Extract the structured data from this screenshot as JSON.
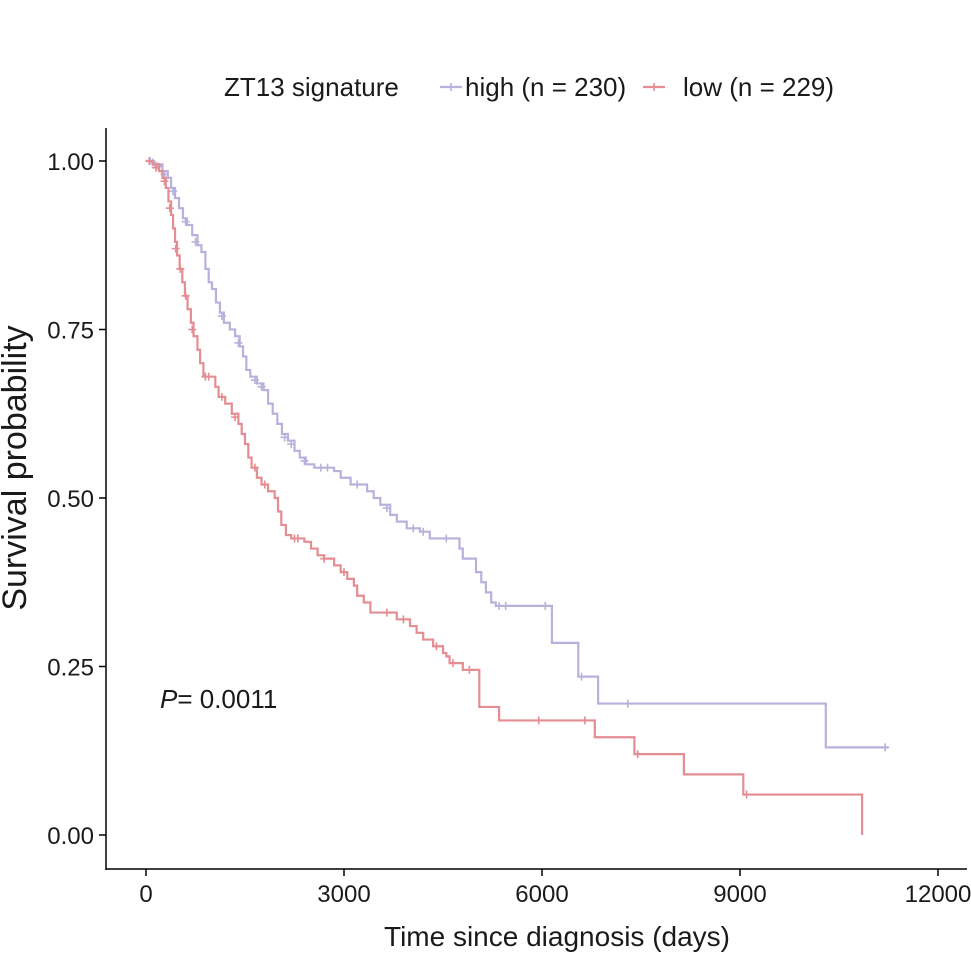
{
  "chart_data": {
    "type": "line",
    "step": true,
    "xlabel": "Time since diagnosis (days)",
    "ylabel": "Survival probability",
    "xlim": [
      -500,
      12000
    ],
    "ylim": [
      -0.05,
      1.05
    ],
    "xticks": [
      0,
      3000,
      6000,
      9000,
      12000
    ],
    "xtick_labels": [
      "0",
      "3000",
      "6000",
      "9000",
      "12000"
    ],
    "yticks": [
      0,
      0.25,
      0.5,
      0.75,
      1.0
    ],
    "ytick_labels": [
      "0.00",
      "0.25",
      "0.50",
      "0.75",
      "1.00"
    ],
    "grid": false,
    "legend": {
      "title": "ZT13 signature",
      "position": "top"
    },
    "annotation": {
      "p_label": "P",
      "p_value": "= 0.0011"
    },
    "series": [
      {
        "name": "high (n = 230)",
        "color": "#b7b2dc",
        "steps": [
          [
            0,
            1.0
          ],
          [
            120,
            0.995
          ],
          [
            250,
            0.985
          ],
          [
            330,
            0.975
          ],
          [
            380,
            0.96
          ],
          [
            440,
            0.945
          ],
          [
            500,
            0.93
          ],
          [
            560,
            0.915
          ],
          [
            620,
            0.905
          ],
          [
            700,
            0.89
          ],
          [
            780,
            0.875
          ],
          [
            840,
            0.865
          ],
          [
            900,
            0.84
          ],
          [
            950,
            0.82
          ],
          [
            1000,
            0.81
          ],
          [
            1060,
            0.79
          ],
          [
            1120,
            0.775
          ],
          [
            1180,
            0.76
          ],
          [
            1270,
            0.75
          ],
          [
            1350,
            0.74
          ],
          [
            1420,
            0.725
          ],
          [
            1470,
            0.71
          ],
          [
            1520,
            0.69
          ],
          [
            1580,
            0.68
          ],
          [
            1680,
            0.67
          ],
          [
            1780,
            0.66
          ],
          [
            1850,
            0.64
          ],
          [
            1920,
            0.625
          ],
          [
            1990,
            0.61
          ],
          [
            2060,
            0.595
          ],
          [
            2150,
            0.585
          ],
          [
            2250,
            0.57
          ],
          [
            2330,
            0.56
          ],
          [
            2420,
            0.55
          ],
          [
            2550,
            0.545
          ],
          [
            2850,
            0.54
          ],
          [
            2950,
            0.53
          ],
          [
            3100,
            0.52
          ],
          [
            3350,
            0.51
          ],
          [
            3450,
            0.5
          ],
          [
            3550,
            0.49
          ],
          [
            3700,
            0.475
          ],
          [
            3800,
            0.465
          ],
          [
            3950,
            0.455
          ],
          [
            4150,
            0.45
          ],
          [
            4300,
            0.44
          ],
          [
            4750,
            0.425
          ],
          [
            4800,
            0.41
          ],
          [
            5000,
            0.39
          ],
          [
            5080,
            0.375
          ],
          [
            5150,
            0.36
          ],
          [
            5230,
            0.345
          ],
          [
            5300,
            0.34
          ],
          [
            6150,
            0.285
          ],
          [
            6550,
            0.235
          ],
          [
            6850,
            0.195
          ],
          [
            10300,
            0.13
          ],
          [
            11250,
            0.13
          ]
        ],
        "censors": [
          [
            60,
            1.0
          ],
          [
            100,
            0.998
          ],
          [
            180,
            0.992
          ],
          [
            280,
            0.98
          ],
          [
            410,
            0.955
          ],
          [
            600,
            0.91
          ],
          [
            750,
            0.88
          ],
          [
            1150,
            0.77
          ],
          [
            1400,
            0.73
          ],
          [
            1650,
            0.675
          ],
          [
            1750,
            0.665
          ],
          [
            2100,
            0.59
          ],
          [
            2200,
            0.58
          ],
          [
            2400,
            0.555
          ],
          [
            2650,
            0.545
          ],
          [
            2750,
            0.545
          ],
          [
            3200,
            0.52
          ],
          [
            3650,
            0.485
          ],
          [
            4050,
            0.455
          ],
          [
            4200,
            0.45
          ],
          [
            4550,
            0.44
          ],
          [
            5350,
            0.34
          ],
          [
            5450,
            0.34
          ],
          [
            6050,
            0.34
          ],
          [
            6600,
            0.235
          ],
          [
            7300,
            0.195
          ],
          [
            11200,
            0.13
          ]
        ]
      },
      {
        "name": "low (n = 229)",
        "color": "#e48d92",
        "steps": [
          [
            0,
            1.0
          ],
          [
            100,
            0.995
          ],
          [
            200,
            0.985
          ],
          [
            250,
            0.975
          ],
          [
            300,
            0.96
          ],
          [
            340,
            0.94
          ],
          [
            380,
            0.92
          ],
          [
            410,
            0.9
          ],
          [
            440,
            0.88
          ],
          [
            470,
            0.86
          ],
          [
            510,
            0.84
          ],
          [
            550,
            0.82
          ],
          [
            590,
            0.8
          ],
          [
            630,
            0.78
          ],
          [
            680,
            0.76
          ],
          [
            720,
            0.74
          ],
          [
            780,
            0.72
          ],
          [
            820,
            0.7
          ],
          [
            870,
            0.68
          ],
          [
            1050,
            0.665
          ],
          [
            1100,
            0.65
          ],
          [
            1200,
            0.64
          ],
          [
            1300,
            0.625
          ],
          [
            1400,
            0.61
          ],
          [
            1450,
            0.595
          ],
          [
            1500,
            0.58
          ],
          [
            1550,
            0.56
          ],
          [
            1600,
            0.545
          ],
          [
            1680,
            0.53
          ],
          [
            1750,
            0.52
          ],
          [
            1850,
            0.51
          ],
          [
            1950,
            0.5
          ],
          [
            2000,
            0.48
          ],
          [
            2050,
            0.46
          ],
          [
            2120,
            0.445
          ],
          [
            2200,
            0.44
          ],
          [
            2400,
            0.435
          ],
          [
            2500,
            0.425
          ],
          [
            2600,
            0.415
          ],
          [
            2700,
            0.41
          ],
          [
            2850,
            0.4
          ],
          [
            2950,
            0.39
          ],
          [
            3050,
            0.38
          ],
          [
            3150,
            0.37
          ],
          [
            3200,
            0.355
          ],
          [
            3300,
            0.345
          ],
          [
            3400,
            0.33
          ],
          [
            3800,
            0.32
          ],
          [
            4000,
            0.31
          ],
          [
            4100,
            0.3
          ],
          [
            4200,
            0.29
          ],
          [
            4350,
            0.28
          ],
          [
            4500,
            0.27
          ],
          [
            4550,
            0.265
          ],
          [
            4600,
            0.255
          ],
          [
            4800,
            0.245
          ],
          [
            5050,
            0.19
          ],
          [
            5350,
            0.17
          ],
          [
            6800,
            0.145
          ],
          [
            7400,
            0.12
          ],
          [
            8150,
            0.09
          ],
          [
            9050,
            0.06
          ],
          [
            10850,
            0.0
          ]
        ],
        "censors": [
          [
            50,
            1.0
          ],
          [
            150,
            0.99
          ],
          [
            280,
            0.97
          ],
          [
            360,
            0.93
          ],
          [
            450,
            0.87
          ],
          [
            520,
            0.84
          ],
          [
            600,
            0.8
          ],
          [
            700,
            0.75
          ],
          [
            900,
            0.68
          ],
          [
            950,
            0.68
          ],
          [
            1150,
            0.65
          ],
          [
            1350,
            0.62
          ],
          [
            1650,
            0.545
          ],
          [
            1800,
            0.52
          ],
          [
            2250,
            0.44
          ],
          [
            2300,
            0.44
          ],
          [
            2700,
            0.41
          ],
          [
            3000,
            0.39
          ],
          [
            3650,
            0.33
          ],
          [
            3900,
            0.32
          ],
          [
            4400,
            0.28
          ],
          [
            4650,
            0.255
          ],
          [
            4900,
            0.245
          ],
          [
            5950,
            0.17
          ],
          [
            6650,
            0.17
          ],
          [
            7450,
            0.12
          ],
          [
            9100,
            0.06
          ]
        ]
      }
    ]
  }
}
